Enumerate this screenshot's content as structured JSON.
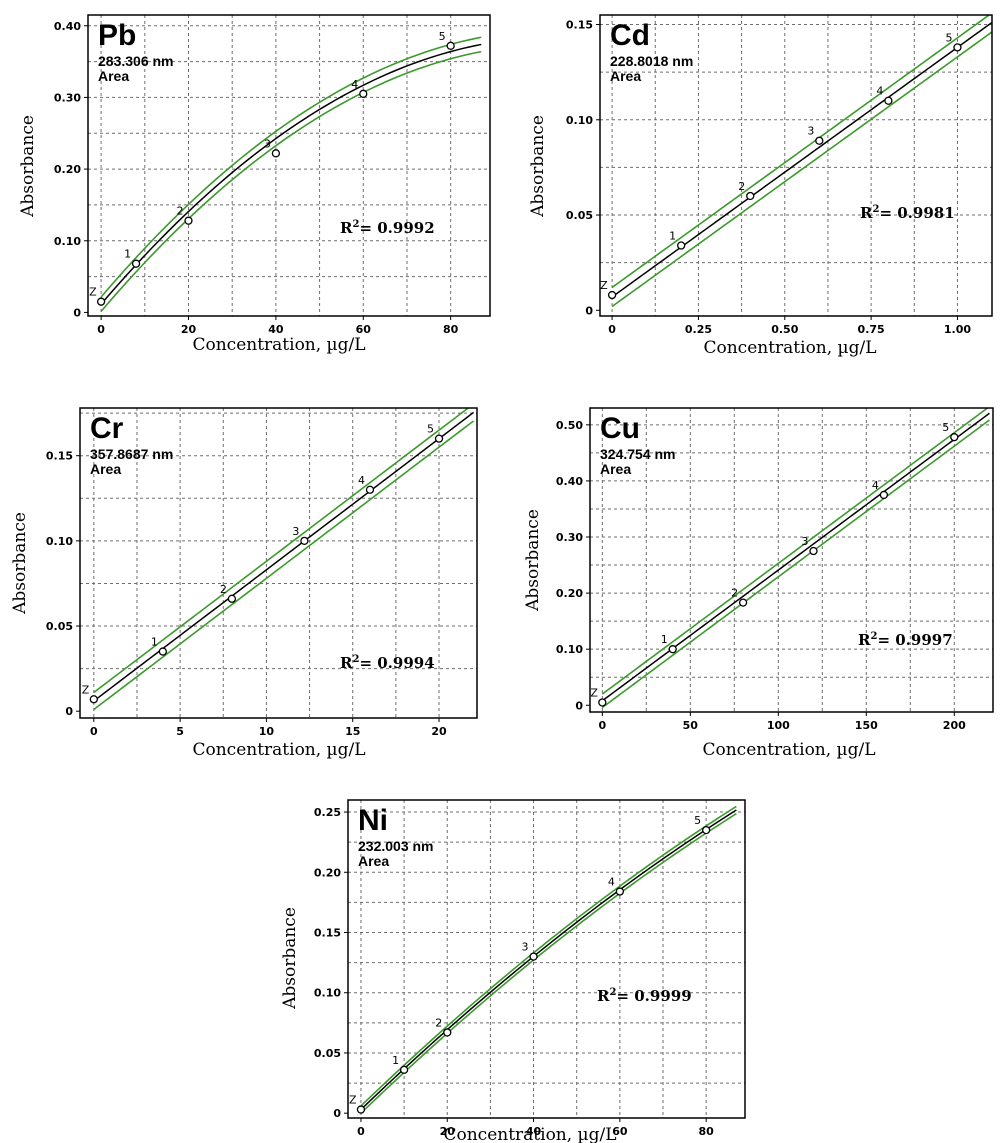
{
  "colors": {
    "fit": "#000000",
    "band": "#3a9a2a",
    "grid": "#6e6e6e"
  },
  "chart_data": [
    {
      "type": "line",
      "title": "Pb",
      "wavelength": "283.306 nm",
      "mode": "Area",
      "xlabel": "Concentration, µg/L",
      "ylabel": "Absorbance",
      "r2_prefix": "R",
      "r2_sup": "2",
      "r2_value": "= 0.9992",
      "xlim": [
        -3,
        89
      ],
      "ylim": [
        -0.005,
        0.415
      ],
      "xticks": [
        0,
        20,
        40,
        60,
        80
      ],
      "xtick_labels": [
        "0",
        "20",
        "40",
        "60",
        "80"
      ],
      "yticks": [
        0,
        0.1,
        0.2,
        0.3,
        0.4
      ],
      "ytick_labels": [
        "0",
        "0.10",
        "0.20",
        "0.30",
        "0.40"
      ],
      "xgrid": [
        0,
        10,
        20,
        30,
        40,
        50,
        60,
        70,
        80
      ],
      "ygrid": [
        0.05,
        0.1,
        0.15,
        0.2,
        0.25,
        0.3,
        0.35,
        0.4
      ],
      "points": [
        {
          "label": "Z",
          "x": 0,
          "y": 0.015
        },
        {
          "label": "1",
          "x": 8,
          "y": 0.068
        },
        {
          "label": "2",
          "x": 20,
          "y": 0.128
        },
        {
          "label": "3",
          "x": 40,
          "y": 0.222
        },
        {
          "label": "4",
          "x": 60,
          "y": 0.305
        },
        {
          "label": "5",
          "x": 80,
          "y": 0.372
        }
      ],
      "fit": {
        "a": 0.0115,
        "b": 0.00715,
        "c": -3.43e-05,
        "x_end": 87
      },
      "band": 0.01
    },
    {
      "type": "line",
      "title": "Cd",
      "wavelength": "228.8018 nm",
      "mode": "Area",
      "xlabel": "Concentration, µg/L",
      "ylabel": "Absorbance",
      "r2_prefix": "R",
      "r2_sup": "2",
      "r2_value": "= 0.9981",
      "xlim": [
        -0.035,
        1.1
      ],
      "ylim": [
        -0.003,
        0.155
      ],
      "xticks": [
        0,
        0.25,
        0.5,
        0.75,
        1.0
      ],
      "xtick_labels": [
        "0",
        "0.25",
        "0.50",
        "0.75",
        "1.00"
      ],
      "yticks": [
        0,
        0.05,
        0.1,
        0.15
      ],
      "ytick_labels": [
        "0",
        "0.05",
        "0.10",
        "0.15"
      ],
      "xgrid": [
        0,
        0.125,
        0.25,
        0.375,
        0.5,
        0.625,
        0.75,
        0.875,
        1.0
      ],
      "ygrid": [
        0.025,
        0.05,
        0.075,
        0.1,
        0.125,
        0.15
      ],
      "points": [
        {
          "label": "Z",
          "x": 0,
          "y": 0.008
        },
        {
          "label": "1",
          "x": 0.2,
          "y": 0.034
        },
        {
          "label": "2",
          "x": 0.4,
          "y": 0.06
        },
        {
          "label": "3",
          "x": 0.6,
          "y": 0.089
        },
        {
          "label": "4",
          "x": 0.8,
          "y": 0.11
        },
        {
          "label": "5",
          "x": 1.0,
          "y": 0.138
        }
      ],
      "fit": {
        "a": 0.007,
        "b": 0.131,
        "c": 0.0,
        "x_end": 1.1
      },
      "band": 0.005
    },
    {
      "type": "line",
      "title": "Cr",
      "wavelength": "357.8687 nm",
      "mode": "Area",
      "xlabel": "Concentration, µg/L",
      "ylabel": "Absorbance",
      "r2_prefix": "R",
      "r2_sup": "2",
      "r2_value": "= 0.9994",
      "xlim": [
        -0.8,
        22.2
      ],
      "ylim": [
        -0.004,
        0.178
      ],
      "xticks": [
        0,
        5,
        10,
        15,
        20
      ],
      "xtick_labels": [
        "0",
        "5",
        "10",
        "15",
        "20"
      ],
      "yticks": [
        0,
        0.05,
        0.1,
        0.15
      ],
      "ytick_labels": [
        "0",
        "0.05",
        "0.10",
        "0.15"
      ],
      "xgrid": [
        0,
        2.5,
        5,
        7.5,
        10,
        12.5,
        15,
        17.5,
        20
      ],
      "ygrid": [
        0.025,
        0.05,
        0.075,
        0.1,
        0.125,
        0.15,
        0.175
      ],
      "points": [
        {
          "label": "Z",
          "x": 0,
          "y": 0.007
        },
        {
          "label": "1",
          "x": 4,
          "y": 0.035
        },
        {
          "label": "2",
          "x": 8,
          "y": 0.066
        },
        {
          "label": "3",
          "x": 12.2,
          "y": 0.1
        },
        {
          "label": "4",
          "x": 16,
          "y": 0.13
        },
        {
          "label": "5",
          "x": 20,
          "y": 0.16
        }
      ],
      "fit": {
        "a": 0.006,
        "b": 0.0077,
        "c": 0.0,
        "x_end": 22
      },
      "band": 0.005
    },
    {
      "type": "line",
      "title": "Cu",
      "wavelength": "324.754 nm",
      "mode": "Area",
      "xlabel": "Concentration, µg/L",
      "ylabel": "Absorbance",
      "r2_prefix": "R",
      "r2_sup": "2",
      "r2_value": "= 0.9997",
      "xlim": [
        -7,
        222
      ],
      "ylim": [
        -0.012,
        0.53
      ],
      "xticks": [
        0,
        50,
        100,
        150,
        200
      ],
      "xtick_labels": [
        "0",
        "50",
        "100",
        "150",
        "200"
      ],
      "yticks": [
        0,
        0.1,
        0.2,
        0.3,
        0.4,
        0.5
      ],
      "ytick_labels": [
        "0",
        "0.10",
        "0.20",
        "0.30",
        "0.40",
        "0.50"
      ],
      "xgrid": [
        0,
        25,
        50,
        75,
        100,
        125,
        150,
        175,
        200
      ],
      "ygrid": [
        0.05,
        0.1,
        0.15,
        0.2,
        0.25,
        0.3,
        0.35,
        0.4,
        0.45,
        0.5
      ],
      "points": [
        {
          "label": "Z",
          "x": 0,
          "y": 0.005
        },
        {
          "label": "1",
          "x": 40,
          "y": 0.1
        },
        {
          "label": "2",
          "x": 80,
          "y": 0.183
        },
        {
          "label": "3",
          "x": 120,
          "y": 0.275
        },
        {
          "label": "4",
          "x": 160,
          "y": 0.375
        },
        {
          "label": "5",
          "x": 200,
          "y": 0.478
        }
      ],
      "fit": {
        "a": 0.008,
        "b": 0.00233,
        "c": 0.0,
        "x_end": 220
      },
      "band": 0.012
    },
    {
      "type": "line",
      "title": "Ni",
      "wavelength": "232.003 nm",
      "mode": "Area",
      "xlabel": "Concentration, µg/L",
      "ylabel": "Absorbance",
      "r2_prefix": "R",
      "r2_sup": "2",
      "r2_value": "= 0.9999",
      "xlim": [
        -3,
        89
      ],
      "ylim": [
        -0.004,
        0.26
      ],
      "xticks": [
        0,
        20,
        40,
        60,
        80
      ],
      "xtick_labels": [
        "0",
        "20",
        "40",
        "60",
        "80"
      ],
      "yticks": [
        0,
        0.05,
        0.1,
        0.15,
        0.2,
        0.25
      ],
      "ytick_labels": [
        "0",
        "0.05",
        "0.10",
        "0.15",
        "0.20",
        "0.25"
      ],
      "xgrid": [
        0,
        10,
        20,
        30,
        40,
        50,
        60,
        70,
        80
      ],
      "ygrid": [
        0.025,
        0.05,
        0.075,
        0.1,
        0.125,
        0.15,
        0.175,
        0.2,
        0.225,
        0.25
      ],
      "points": [
        {
          "label": "Z",
          "x": 0,
          "y": 0.003
        },
        {
          "label": "1",
          "x": 10,
          "y": 0.036
        },
        {
          "label": "2",
          "x": 20,
          "y": 0.067
        },
        {
          "label": "3",
          "x": 40,
          "y": 0.13
        },
        {
          "label": "4",
          "x": 60,
          "y": 0.184
        },
        {
          "label": "5",
          "x": 80,
          "y": 0.235
        }
      ],
      "fit": {
        "a": 0.003,
        "b": 0.00345,
        "c": -6.8e-06,
        "x_end": 87
      },
      "band": 0.003
    }
  ]
}
